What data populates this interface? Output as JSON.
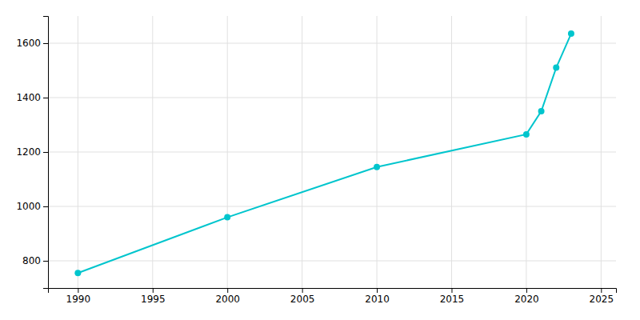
{
  "chart_data": {
    "type": "line",
    "x": [
      1990,
      2000,
      2010,
      2020,
      2021,
      2022,
      2023
    ],
    "values": [
      755,
      960,
      1145,
      1265,
      1350,
      1510,
      1635
    ],
    "color": "#00C5CD",
    "marker": "circle",
    "xlim": [
      1988,
      2026
    ],
    "xticks": [
      1990,
      1995,
      2000,
      2005,
      2010,
      2015,
      2020,
      2025
    ],
    "ylim": [
      700,
      1700
    ],
    "yticks": [
      800,
      1000,
      1200,
      1400,
      1600
    ],
    "grid": true
  }
}
